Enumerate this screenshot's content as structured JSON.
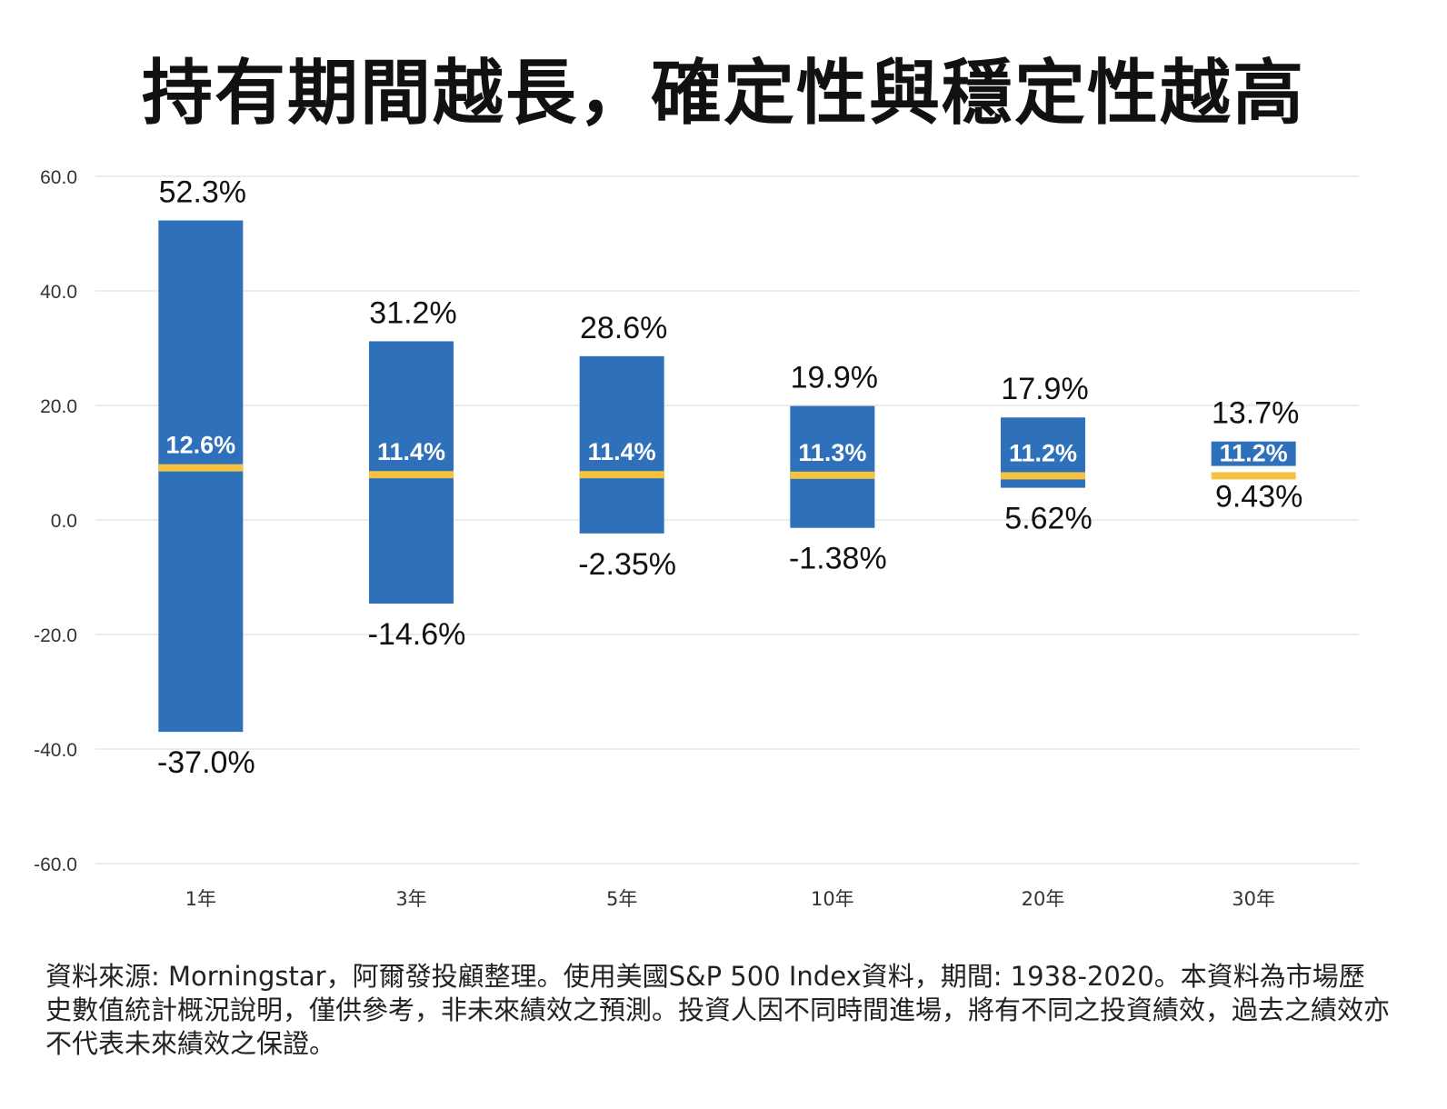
{
  "chart_data": {
    "type": "bar",
    "subtype": "floating-range",
    "title": "持有期間越長，確定性與穩定性越高",
    "categories": [
      "1年",
      "3年",
      "5年",
      "10年",
      "20年",
      "30年"
    ],
    "max_labels": [
      "52.3%",
      "31.2%",
      "28.6%",
      "19.9%",
      "17.9%",
      "13.7%"
    ],
    "min_labels": [
      "-37.0%",
      "-14.6%",
      "-2.35%",
      "-1.38%",
      "5.62%",
      "9.43%"
    ],
    "avg_labels": [
      "12.6%",
      "11.4%",
      "11.4%",
      "11.3%",
      "11.2%",
      "11.2%"
    ],
    "max": [
      52.3,
      31.2,
      28.6,
      19.9,
      17.9,
      13.7
    ],
    "min": [
      -37.0,
      -14.6,
      -2.35,
      -1.38,
      5.62,
      9.43
    ],
    "avg": [
      12.6,
      11.4,
      11.4,
      11.3,
      11.2,
      11.2
    ],
    "ylim": [
      -60,
      60
    ],
    "yticks": [
      "60.0",
      "40.0",
      "20.0",
      "0.0",
      "-20.0",
      "-40.0",
      "-60.0"
    ],
    "ytick_values": [
      60,
      40,
      20,
      0,
      -20,
      -40,
      -60
    ],
    "grid": true,
    "colors": {
      "bar": "#2f70bb",
      "avg_line": "#f5c242",
      "grid": "#e6e6e6"
    }
  },
  "footnote": "資料來源: Morningstar，阿爾發投顧整理。使用美國S&P 500 Index資料，期間: 1938-2020。本資料為市場歷史數值統計概況說明，僅供參考，非未來績效之預測。投資人因不同時間進場，將有不同之投資績效，過去之績效亦不代表未來績效之保證。"
}
